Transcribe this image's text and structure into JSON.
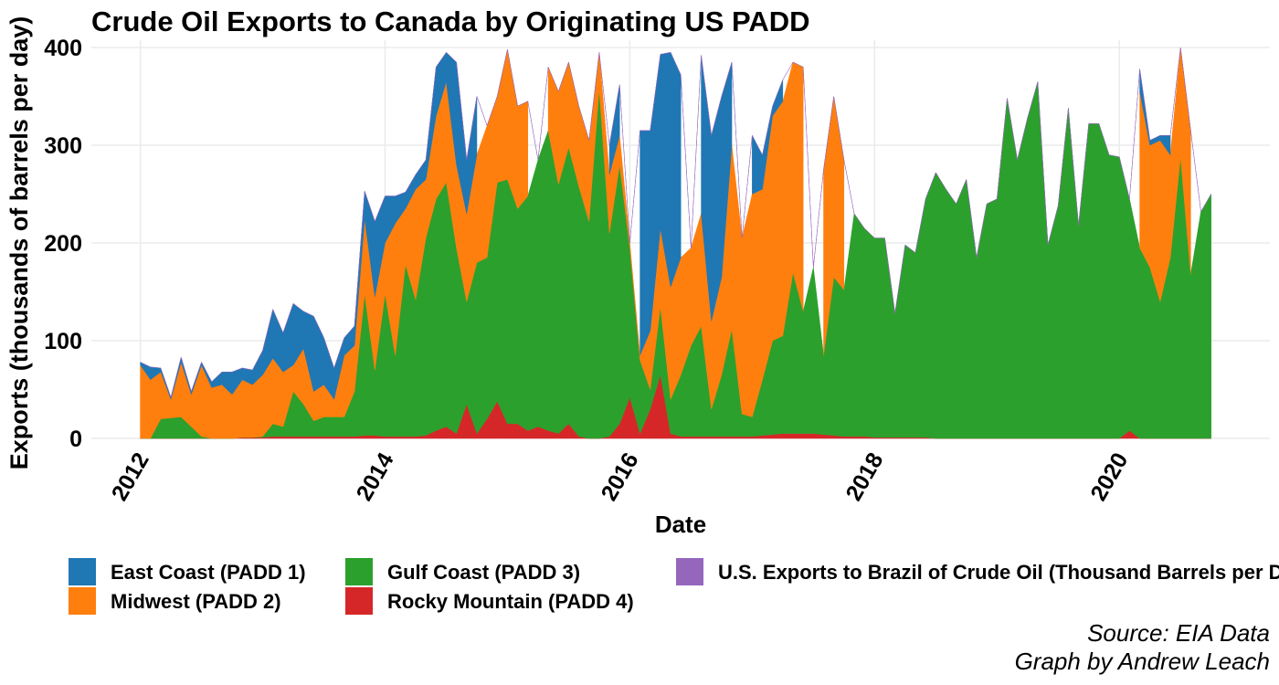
{
  "chart_data": {
    "type": "stacked_area",
    "title": "Crude Oil Exports to Canada by Originating US PADD",
    "x_label": "Date",
    "y_label": "Exports (thousands of barrels per day)",
    "source": "Source: EIA Data",
    "credit": "Graph by Andrew Leach",
    "grid": true,
    "legend": "bottom",
    "xlim": [
      2011.6,
      2021.23
    ],
    "xticks": [
      2012,
      2014,
      2016,
      2018,
      2020
    ],
    "ylim": [
      0,
      400
    ],
    "yticks": [
      0,
      100,
      200,
      300,
      400
    ],
    "x": [
      "2012-01",
      "2012-02",
      "2012-03",
      "2012-04",
      "2012-05",
      "2012-06",
      "2012-07",
      "2012-08",
      "2012-09",
      "2012-10",
      "2012-11",
      "2012-12",
      "2013-01",
      "2013-02",
      "2013-03",
      "2013-04",
      "2013-05",
      "2013-06",
      "2013-07",
      "2013-08",
      "2013-09",
      "2013-10",
      "2013-11",
      "2013-12",
      "2014-01",
      "2014-02",
      "2014-03",
      "2014-04",
      "2014-05",
      "2014-06",
      "2014-07",
      "2014-08",
      "2014-09",
      "2014-10",
      "2014-11",
      "2014-12",
      "2015-01",
      "2015-02",
      "2015-03",
      "2015-04",
      "2015-05",
      "2015-06",
      "2015-07",
      "2015-08",
      "2015-09",
      "2015-10",
      "2015-11",
      "2015-12",
      "2016-01",
      "2016-02",
      "2016-03",
      "2016-04",
      "2016-05",
      "2016-06",
      "2016-07",
      "2016-08",
      "2016-09",
      "2016-10",
      "2016-11",
      "2016-12",
      "2017-01",
      "2017-02",
      "2017-03",
      "2017-04",
      "2017-05",
      "2017-06",
      "2017-07",
      "2017-08",
      "2017-09",
      "2017-10",
      "2017-11",
      "2017-12",
      "2018-01",
      "2018-02",
      "2018-03",
      "2018-04",
      "2018-05",
      "2018-06",
      "2018-07",
      "2018-08",
      "2018-09",
      "2018-10",
      "2018-11",
      "2018-12",
      "2019-01",
      "2019-02",
      "2019-03",
      "2019-04",
      "2019-05",
      "2019-06",
      "2019-07",
      "2019-08",
      "2019-09",
      "2019-10",
      "2019-11",
      "2019-12",
      "2020-01",
      "2020-02",
      "2020-03",
      "2020-04",
      "2020-05",
      "2020-06",
      "2020-07",
      "2020-08",
      "2020-09",
      "2020-10"
    ],
    "series": [
      {
        "name": "Rocky Mountain (PADD 4)",
        "color": "#d62728",
        "values": [
          0,
          0,
          0,
          0,
          0,
          0,
          0,
          0,
          0,
          0,
          1,
          1,
          1,
          2,
          2,
          2,
          2,
          2,
          2,
          2,
          2,
          2,
          3,
          3,
          2,
          2,
          2,
          2,
          3,
          8,
          12,
          5,
          35,
          5,
          20,
          38,
          15,
          15,
          8,
          12,
          8,
          5,
          15,
          2,
          0,
          0,
          2,
          15,
          42,
          5,
          30,
          65,
          5,
          2,
          2,
          2,
          2,
          2,
          2,
          2,
          2,
          3,
          4,
          5,
          5,
          5,
          5,
          4,
          3,
          2,
          2,
          2,
          1,
          1,
          1,
          1,
          1,
          1,
          0,
          0,
          0,
          0,
          0,
          0,
          0,
          0,
          0,
          0,
          0,
          0,
          0,
          0,
          0,
          0,
          0,
          0,
          0,
          8,
          0,
          0,
          0,
          0,
          0,
          0,
          0,
          0
        ]
      },
      {
        "name": "Gulf Coast (PADD 3)",
        "color": "#2ca02c",
        "values": [
          0,
          0,
          20,
          21,
          22,
          12,
          2,
          0,
          0,
          0,
          0,
          0,
          1,
          13,
          10,
          46,
          33,
          16,
          20,
          20,
          20,
          46,
          145,
          67,
          146,
          83,
          176,
          140,
          202,
          237,
          250,
          190,
          105,
          175,
          165,
          224,
          250,
          220,
          240,
          273,
          307,
          255,
          283,
          256,
          222,
          358,
          208,
          265,
          153,
          75,
          20,
          70,
          35,
          63,
          93,
          113,
          28,
          63,
          110,
          23,
          20,
          57,
          96,
          100,
          165,
          125,
          170,
          81,
          162,
          150,
          228,
          213,
          204,
          204,
          127,
          197,
          189,
          244,
          272,
          255,
          240,
          265,
          185,
          240,
          245,
          348,
          285,
          328,
          365,
          198,
          238,
          338,
          218,
          322,
          322,
          290,
          288,
          237,
          195,
          175,
          140,
          185,
          288,
          168,
          232,
          250
        ]
      },
      {
        "name": "Midwest (PADD 2)",
        "color": "#ff7f0e",
        "values": [
          75,
          60,
          48,
          19,
          56,
          33,
          73,
          52,
          55,
          45,
          59,
          54,
          63,
          67,
          56,
          27,
          57,
          30,
          33,
          18,
          63,
          47,
          77,
          75,
          52,
          135,
          57,
          113,
          60,
          85,
          103,
          85,
          90,
          110,
          135,
          88,
          133,
          105,
          97,
          null,
          65,
          95,
          87,
          82,
          83,
          37,
          60,
          30,
          5,
          5,
          60,
          80,
          115,
          120,
          100,
          115,
          90,
          100,
          188,
          180,
          228,
          195,
          230,
          240,
          215,
          250,
          null,
          190,
          185,
          133,
          null,
          null,
          null,
          null,
          null,
          null,
          null,
          null,
          null,
          null,
          null,
          null,
          null,
          null,
          null,
          null,
          null,
          null,
          null,
          null,
          null,
          null,
          null,
          null,
          null,
          null,
          null,
          null,
          160,
          125,
          165,
          105,
          112,
          147,
          null,
          null
        ]
      },
      {
        "name": "East Coast (PADD 1)",
        "color": "#1f77b4",
        "values": [
          3,
          13,
          4,
          2,
          5,
          3,
          3,
          6,
          13,
          23,
          12,
          15,
          25,
          50,
          40,
          63,
          38,
          77,
          48,
          32,
          18,
          20,
          28,
          77,
          48,
          28,
          17,
          15,
          20,
          50,
          30,
          105,
          55,
          60,
          null,
          null,
          null,
          null,
          null,
          null,
          null,
          null,
          null,
          null,
          null,
          null,
          30,
          52,
          null,
          230,
          205,
          178,
          240,
          187,
          null,
          162,
          190,
          185,
          85,
          null,
          60,
          35,
          10,
          22,
          null,
          null,
          null,
          null,
          null,
          null,
          null,
          null,
          null,
          null,
          null,
          null,
          null,
          null,
          null,
          null,
          null,
          null,
          null,
          null,
          null,
          null,
          null,
          null,
          null,
          null,
          null,
          null,
          null,
          null,
          null,
          null,
          null,
          null,
          23,
          5,
          5,
          20,
          null,
          null,
          null,
          null
        ]
      },
      {
        "name": "U.S. Exports to Brazil of Crude Oil (Thousand Barrels per Day)",
        "color": "#9467bd",
        "values": [
          0,
          0,
          0,
          0,
          0,
          0,
          0,
          0,
          0,
          0,
          0,
          0,
          0,
          0,
          0,
          0,
          0,
          0,
          0,
          0,
          0,
          0,
          0,
          0,
          0,
          0,
          0,
          0,
          0,
          0,
          0,
          0,
          0,
          0,
          0,
          0,
          0,
          0,
          0,
          0,
          0,
          0,
          0,
          0,
          0,
          0,
          0,
          0,
          0,
          0,
          0,
          0,
          0,
          0,
          0,
          0,
          0,
          0,
          0,
          0,
          0,
          0,
          0,
          0,
          0,
          0,
          0,
          0,
          0,
          0,
          0,
          0,
          0,
          0,
          0,
          0,
          0,
          0,
          0,
          0,
          0,
          0,
          0,
          0,
          0,
          0,
          0,
          0,
          0,
          0,
          0,
          0,
          0,
          0,
          0,
          0,
          0,
          0,
          0,
          0,
          0,
          0,
          0,
          0,
          0,
          0
        ]
      }
    ],
    "legend_order": [
      3,
      2,
      1,
      0,
      4
    ]
  }
}
